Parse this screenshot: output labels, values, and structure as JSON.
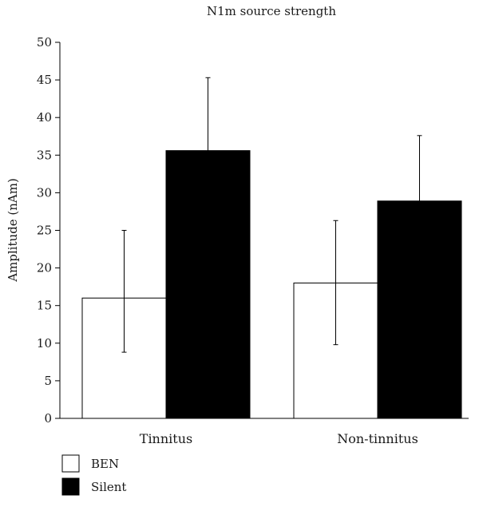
{
  "chart_data": {
    "type": "bar",
    "title": "N1m source strength",
    "xlabel": "",
    "ylabel": "Amplitude (nAm)",
    "ylim": [
      0,
      50
    ],
    "yticks": [
      0,
      5,
      10,
      15,
      20,
      25,
      30,
      35,
      40,
      45,
      50
    ],
    "categories": [
      "Tinnitus",
      "Non-tinnitus"
    ],
    "series": [
      {
        "name": "BEN",
        "color": "#ffffff",
        "values": [
          16.0,
          18.0
        ],
        "error_upper": [
          25.0,
          26.3
        ],
        "error_lower": [
          8.8,
          9.8
        ]
      },
      {
        "name": "Silent",
        "color": "#000000",
        "values": [
          35.6,
          28.9
        ],
        "error_upper": [
          45.3,
          37.6
        ],
        "error_lower": [
          25.9,
          20.2
        ]
      }
    ],
    "legend_position": "bottom-left",
    "grid": false
  }
}
